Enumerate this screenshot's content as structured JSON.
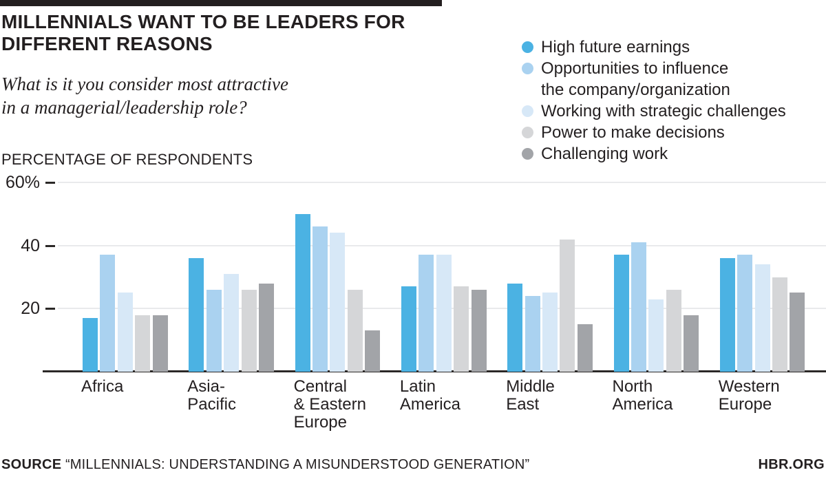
{
  "header": {
    "title_line1": "MILLENNIALS WANT TO BE LEADERS FOR",
    "title_line2": "DIFFERENT REASONS",
    "subtitle_line1": "What is it you consider most attractive",
    "subtitle_line2": "in a managerial/leadership role?",
    "axis_caption": "PERCENTAGE OF RESPONDENTS"
  },
  "footer": {
    "source_label": "SOURCE",
    "source_text": "“MILLENNIALS: UNDERSTANDING A MISUNDERSTOOD GENERATION”",
    "site": "HBR.ORG"
  },
  "colors": {
    "text": "#231f20",
    "accent_bar": "#231f20",
    "gridline": "#e9eaec",
    "axis_line": "#2b2827"
  },
  "chart_data": {
    "type": "bar",
    "title": "Millennials want to be leaders for different reasons",
    "xlabel": "",
    "ylabel": "Percentage of respondents",
    "ylim": [
      0,
      60
    ],
    "grid": true,
    "legend_position": "top-right",
    "yticks": [
      {
        "value": 60,
        "label": "60%"
      },
      {
        "value": 40,
        "label": "40"
      },
      {
        "value": 20,
        "label": "20"
      }
    ],
    "categories": [
      {
        "name": "Africa",
        "label_lines": [
          "Africa"
        ]
      },
      {
        "name": "Asia-Pacific",
        "label_lines": [
          "Asia-",
          "Pacific"
        ]
      },
      {
        "name": "Central & Eastern Europe",
        "label_lines": [
          "Central",
          "& Eastern",
          "Europe"
        ]
      },
      {
        "name": "Latin America",
        "label_lines": [
          "Latin",
          "America"
        ]
      },
      {
        "name": "Middle East",
        "label_lines": [
          "Middle",
          "East"
        ]
      },
      {
        "name": "North America",
        "label_lines": [
          "North",
          "America"
        ]
      },
      {
        "name": "Western Europe",
        "label_lines": [
          "Western",
          "Europe"
        ]
      }
    ],
    "series": [
      {
        "name": "High future earnings",
        "label_lines": [
          "High future earnings"
        ],
        "color": "#4bb2e3",
        "values": [
          17,
          36,
          50,
          27,
          28,
          37,
          36
        ]
      },
      {
        "name": "Opportunities to influence the company/organization",
        "label_lines": [
          "Opportunities to influence",
          "the company/organization"
        ],
        "color": "#aad2f0",
        "values": [
          37,
          26,
          46,
          37,
          24,
          41,
          37
        ]
      },
      {
        "name": "Working with strategic challenges",
        "label_lines": [
          "Working with strategic challenges"
        ],
        "color": "#d7e8f7",
        "values": [
          25,
          31,
          44,
          37,
          25,
          23,
          34
        ]
      },
      {
        "name": "Power to make decisions",
        "label_lines": [
          "Power to make decisions"
        ],
        "color": "#d5d6d8",
        "values": [
          18,
          26,
          26,
          27,
          42,
          26,
          30
        ]
      },
      {
        "name": "Challenging work",
        "label_lines": [
          "Challenging work"
        ],
        "color": "#a2a4a8",
        "values": [
          18,
          28,
          13,
          26,
          15,
          18,
          25
        ]
      }
    ]
  }
}
